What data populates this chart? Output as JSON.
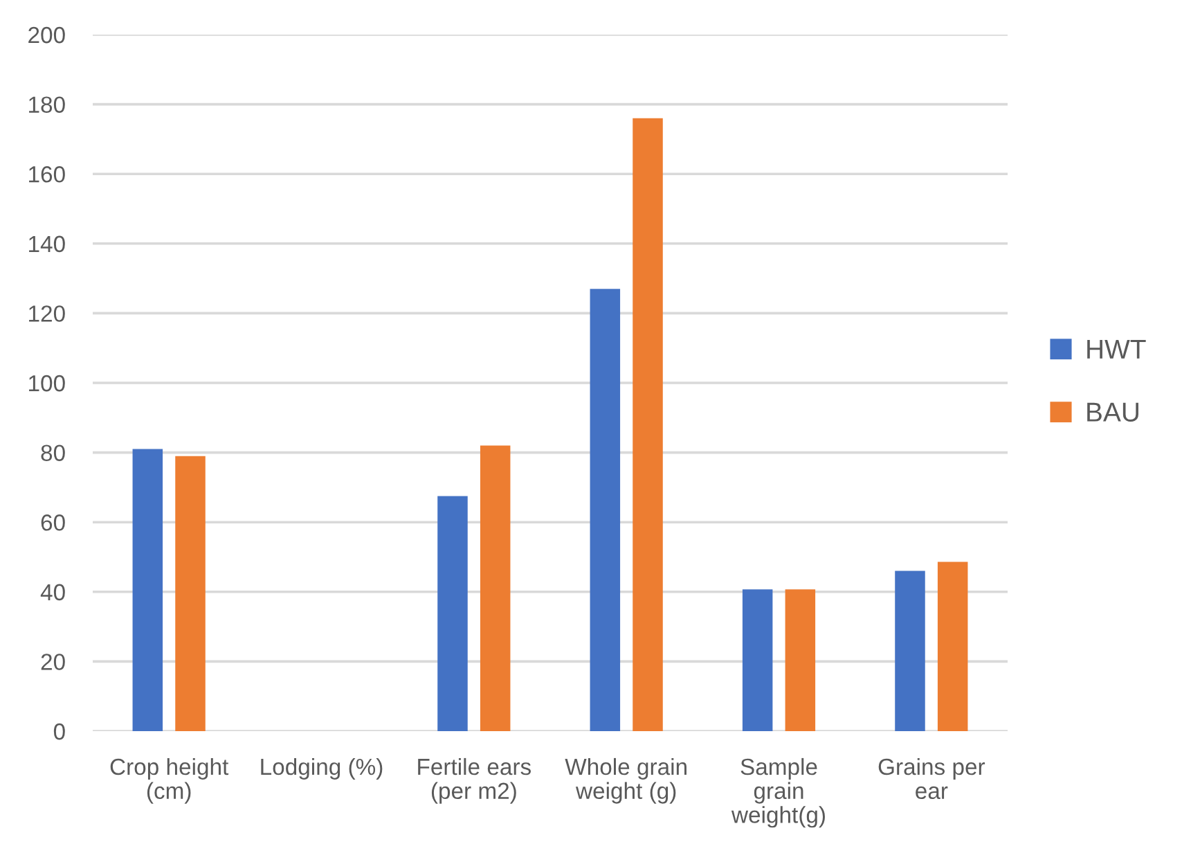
{
  "chart_data": {
    "type": "bar",
    "categories": [
      "Crop height (cm)",
      "Lodging (%)",
      "Fertile ears (per m2)",
      "Whole grain weight (g)",
      "Sample grain weight(g)",
      "Grains per ear"
    ],
    "series": [
      {
        "name": "HWT",
        "color": "#4472c4",
        "values": [
          81,
          null,
          67.5,
          127,
          40.7,
          46
        ]
      },
      {
        "name": "BAU",
        "color": "#ed7d31",
        "values": [
          79,
          null,
          82,
          176,
          40.7,
          48.6
        ]
      }
    ],
    "ylim": [
      0,
      200
    ],
    "yticks": [
      0,
      20,
      40,
      60,
      80,
      100,
      120,
      140,
      160,
      180,
      200
    ],
    "grid": "y",
    "legend": "right"
  }
}
